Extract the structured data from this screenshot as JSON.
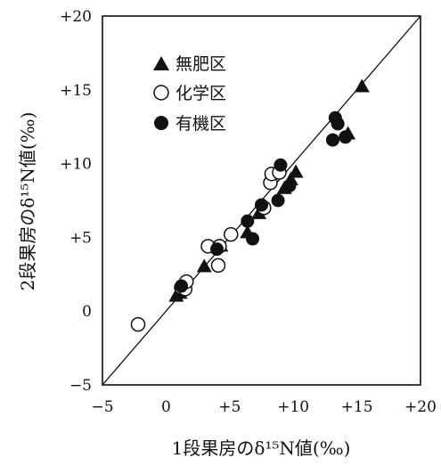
{
  "chart_data": {
    "type": "scatter",
    "title": "",
    "xlabel": "1段果房のδ¹⁵N値(‰)",
    "ylabel": "2段果房のδ¹⁵N値(‰)",
    "xlim": [
      -5,
      20
    ],
    "ylim": [
      -5,
      20
    ],
    "x_ticks": [
      "−5",
      "0",
      "+5",
      "+10",
      "+15",
      "+20"
    ],
    "y_ticks": [
      "−5",
      "0",
      "+5",
      "+10",
      "+15",
      "+20"
    ],
    "reference_line": "1:1",
    "legend_position": "top-left",
    "series": [
      {
        "name": "無肥区",
        "marker": "filled-triangle",
        "points": [
          {
            "x": 0.8,
            "y": 1.0
          },
          {
            "x": 1.1,
            "y": 1.2
          },
          {
            "x": 3.0,
            "y": 3.0
          },
          {
            "x": 4.3,
            "y": 4.4
          },
          {
            "x": 6.4,
            "y": 5.3
          },
          {
            "x": 7.3,
            "y": 6.6
          },
          {
            "x": 9.3,
            "y": 8.3
          },
          {
            "x": 9.8,
            "y": 8.9
          },
          {
            "x": 10.2,
            "y": 9.4
          },
          {
            "x": 14.3,
            "y": 12.0
          },
          {
            "x": 15.4,
            "y": 15.2
          }
        ]
      },
      {
        "name": "化学区",
        "marker": "open-circle",
        "points": [
          {
            "x": -2.2,
            "y": -0.9
          },
          {
            "x": 1.2,
            "y": 1.6
          },
          {
            "x": 1.5,
            "y": 1.5
          },
          {
            "x": 1.6,
            "y": 2.0
          },
          {
            "x": 3.3,
            "y": 4.4
          },
          {
            "x": 4.1,
            "y": 3.1
          },
          {
            "x": 4.2,
            "y": 4.4
          },
          {
            "x": 5.1,
            "y": 5.2
          },
          {
            "x": 7.7,
            "y": 7.0
          },
          {
            "x": 8.2,
            "y": 8.7
          },
          {
            "x": 8.3,
            "y": 9.3
          },
          {
            "x": 8.9,
            "y": 9.4
          }
        ]
      },
      {
        "name": "有機区",
        "marker": "filled-circle",
        "points": [
          {
            "x": 1.2,
            "y": 1.7
          },
          {
            "x": 4.0,
            "y": 4.2
          },
          {
            "x": 6.4,
            "y": 6.1
          },
          {
            "x": 6.8,
            "y": 4.9
          },
          {
            "x": 7.5,
            "y": 7.2
          },
          {
            "x": 8.8,
            "y": 7.5
          },
          {
            "x": 9.0,
            "y": 9.9
          },
          {
            "x": 9.7,
            "y": 8.5
          },
          {
            "x": 13.1,
            "y": 11.6
          },
          {
            "x": 13.3,
            "y": 13.1
          },
          {
            "x": 13.5,
            "y": 12.7
          },
          {
            "x": 14.1,
            "y": 11.8
          }
        ]
      }
    ]
  }
}
